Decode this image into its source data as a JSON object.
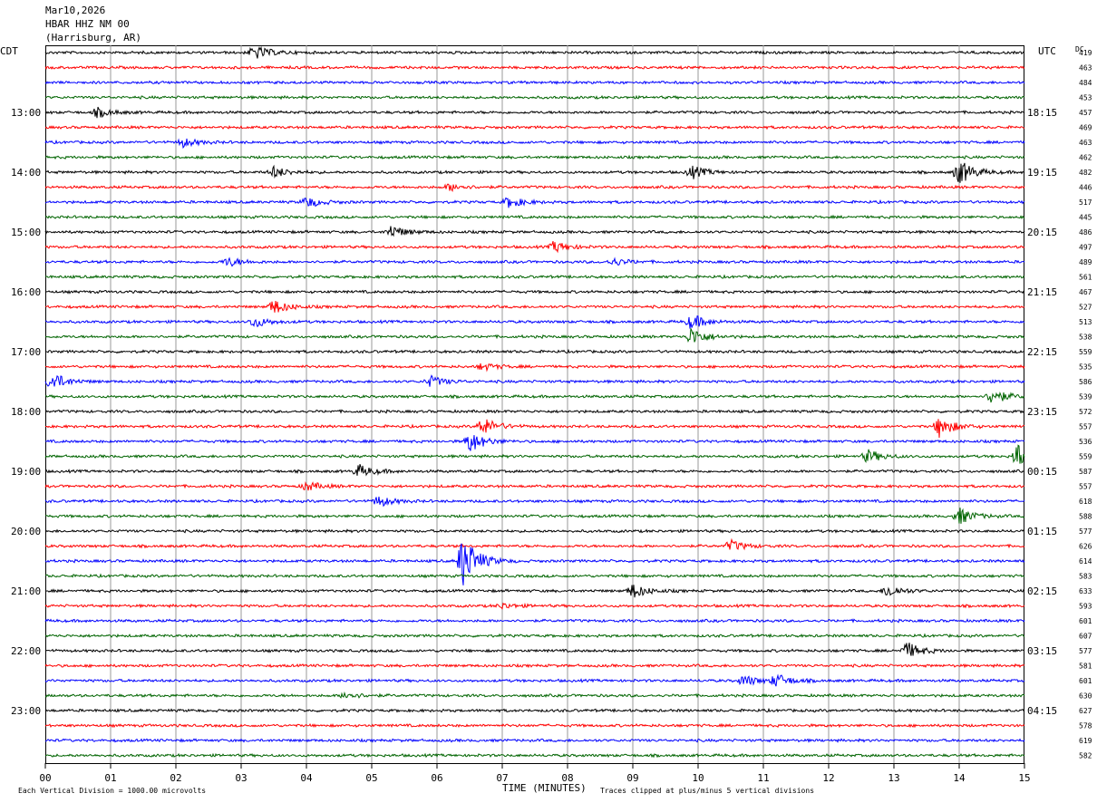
{
  "header": {
    "date": "Mar10,2026",
    "station": "HBAR HHZ NM 00",
    "location": "(Harrisburg, AR)"
  },
  "chart_data": {
    "type": "line",
    "title": "",
    "left_timezone": "CDT",
    "right_timezone": "UTC",
    "dc_label": "DC",
    "xlabel": "TIME (MINUTES)",
    "xlim": [
      0,
      15
    ],
    "x_ticks": [
      "00",
      "01",
      "02",
      "03",
      "04",
      "05",
      "06",
      "07",
      "08",
      "09",
      "10",
      "11",
      "12",
      "13",
      "14",
      "15"
    ],
    "trace_colors": [
      "#000000",
      "#ff0000",
      "#0000ff",
      "#006400"
    ],
    "trace_count": 48,
    "left_hour_labels": [
      "13:00",
      "14:00",
      "15:00",
      "16:00",
      "17:00",
      "18:00",
      "19:00",
      "20:00",
      "21:00",
      "22:00",
      "23:00"
    ],
    "right_hour_labels": [
      "18:15",
      "19:15",
      "20:15",
      "21:15",
      "22:15",
      "23:15",
      "00:15",
      "01:15",
      "02:15",
      "03:15",
      "04:15"
    ],
    "dc_values": [
      "419",
      "463",
      "484",
      "453",
      "457",
      "469",
      "463",
      "462",
      "482",
      "446",
      "517",
      "445",
      "486",
      "497",
      "489",
      "561",
      "467",
      "527",
      "513",
      "538",
      "559",
      "535",
      "586",
      "539",
      "572",
      "557",
      "536",
      "559",
      "587",
      "557",
      "618",
      "588",
      "577",
      "626",
      "614",
      "583",
      "633",
      "593",
      "601",
      "607",
      "577",
      "581",
      "601",
      "630",
      "627",
      "578",
      "619",
      "582"
    ],
    "footer_left": "Each Vertical Division = 1000.00 microvolts",
    "footer_right": "Traces clipped at plus/minus 5 vertical divisions",
    "events": [
      {
        "trace": 0,
        "minute": 3.2,
        "amp": 8
      },
      {
        "trace": 4,
        "minute": 0.8,
        "amp": 5
      },
      {
        "trace": 6,
        "minute": 2.1,
        "amp": 5
      },
      {
        "trace": 8,
        "minute": 3.5,
        "amp": 6
      },
      {
        "trace": 8,
        "minute": 9.9,
        "amp": 7
      },
      {
        "trace": 8,
        "minute": 14.0,
        "amp": 14
      },
      {
        "trace": 9,
        "minute": 6.2,
        "amp": 4
      },
      {
        "trace": 10,
        "minute": 4.0,
        "amp": 6
      },
      {
        "trace": 10,
        "minute": 7.1,
        "amp": 6
      },
      {
        "trace": 12,
        "minute": 5.3,
        "amp": 7
      },
      {
        "trace": 13,
        "minute": 7.8,
        "amp": 6
      },
      {
        "trace": 14,
        "minute": 2.8,
        "amp": 5
      },
      {
        "trace": 14,
        "minute": 8.7,
        "amp": 4
      },
      {
        "trace": 17,
        "minute": 3.5,
        "amp": 8
      },
      {
        "trace": 18,
        "minute": 3.2,
        "amp": 6
      },
      {
        "trace": 18,
        "minute": 9.9,
        "amp": 8
      },
      {
        "trace": 19,
        "minute": 9.9,
        "amp": 10
      },
      {
        "trace": 21,
        "minute": 6.7,
        "amp": 4
      },
      {
        "trace": 22,
        "minute": 0.1,
        "amp": 10
      },
      {
        "trace": 22,
        "minute": 5.9,
        "amp": 6
      },
      {
        "trace": 23,
        "minute": 14.5,
        "amp": 9
      },
      {
        "trace": 25,
        "minute": 6.7,
        "amp": 10
      },
      {
        "trace": 25,
        "minute": 13.7,
        "amp": 12
      },
      {
        "trace": 26,
        "minute": 6.5,
        "amp": 12
      },
      {
        "trace": 27,
        "minute": 12.6,
        "amp": 7
      },
      {
        "trace": 27,
        "minute": 14.9,
        "amp": 16
      },
      {
        "trace": 28,
        "minute": 4.8,
        "amp": 7
      },
      {
        "trace": 29,
        "minute": 4.0,
        "amp": 5
      },
      {
        "trace": 30,
        "minute": 5.1,
        "amp": 6
      },
      {
        "trace": 31,
        "minute": 14.0,
        "amp": 9
      },
      {
        "trace": 33,
        "minute": 10.5,
        "amp": 6
      },
      {
        "trace": 34,
        "minute": 6.4,
        "amp": 30
      },
      {
        "trace": 36,
        "minute": 9.0,
        "amp": 8
      },
      {
        "trace": 36,
        "minute": 12.9,
        "amp": 7
      },
      {
        "trace": 37,
        "minute": 7.0,
        "amp": 3
      },
      {
        "trace": 40,
        "minute": 13.2,
        "amp": 9
      },
      {
        "trace": 42,
        "minute": 10.7,
        "amp": 6
      },
      {
        "trace": 42,
        "minute": 11.2,
        "amp": 7
      },
      {
        "trace": 43,
        "minute": 4.6,
        "amp": 4
      }
    ]
  }
}
